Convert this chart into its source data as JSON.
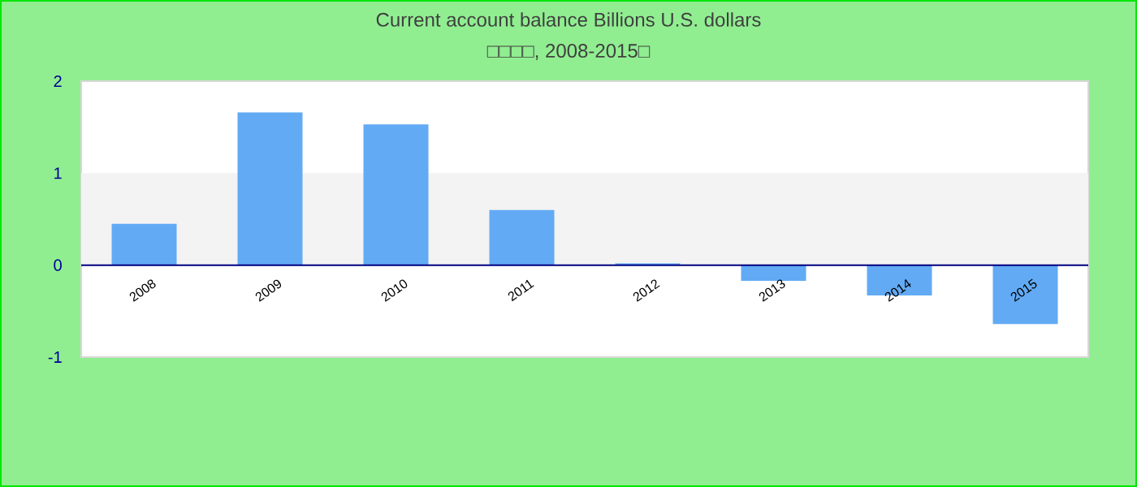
{
  "chart_data": {
    "type": "bar",
    "title": "Current account balance Billions U.S. dollars",
    "subtitle": "□□□□, 2008-2015□",
    "categories": [
      "2008",
      "2009",
      "2010",
      "2011",
      "2012",
      "2013",
      "2014",
      "2015"
    ],
    "values": [
      0.45,
      1.66,
      1.53,
      0.6,
      0.02,
      -0.17,
      -0.33,
      -0.64
    ],
    "color": "#62aaf4",
    "ylim": [
      -1,
      2
    ],
    "yticks": [
      -1,
      0,
      1,
      2
    ],
    "bands": [
      {
        "axis": "y",
        "from": 0,
        "to": 1,
        "color": "#f3f3f3"
      }
    ]
  }
}
